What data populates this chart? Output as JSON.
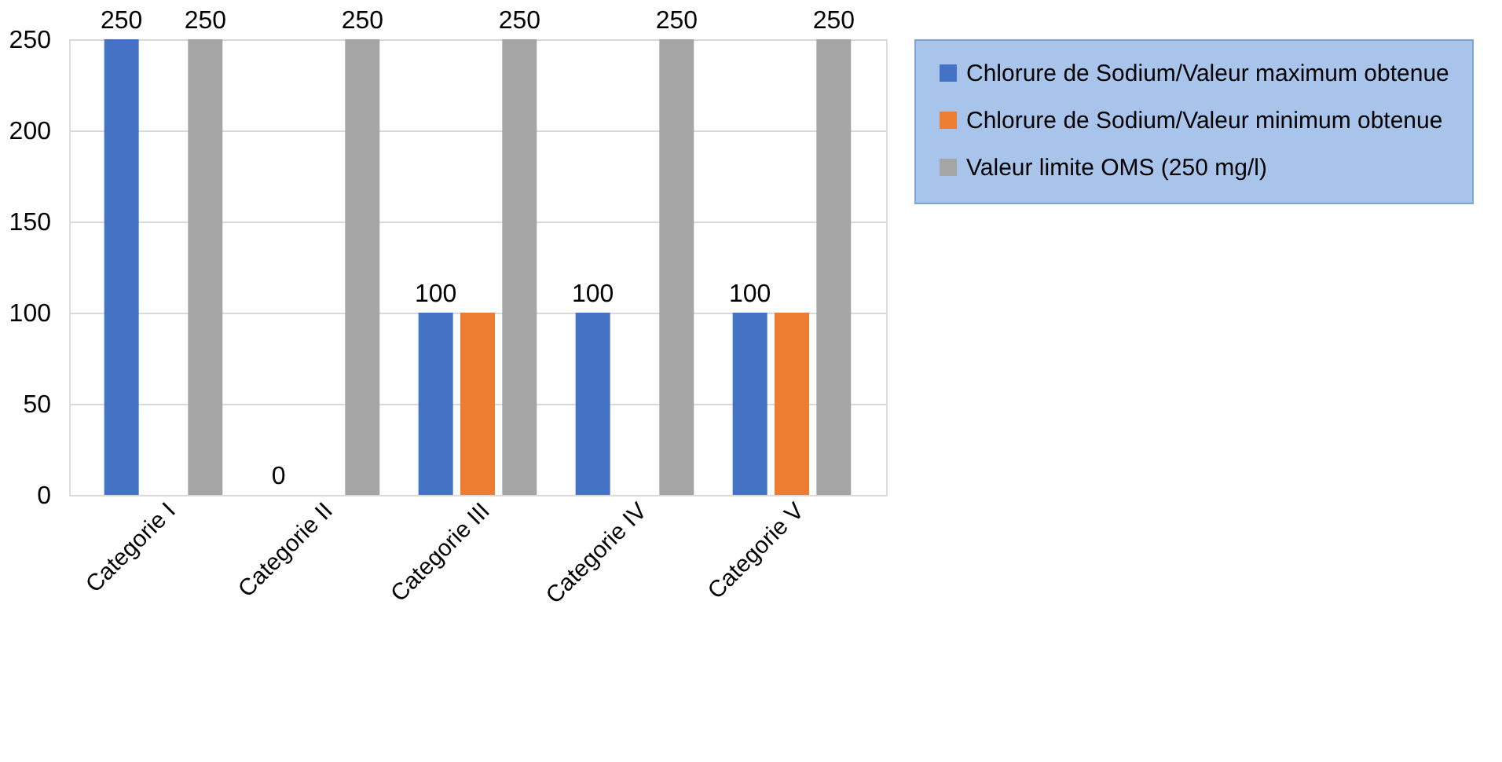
{
  "chart_data": {
    "type": "bar",
    "categories": [
      "Categorie I",
      "Categorie II",
      "Categorie III",
      "Categorie IV",
      "Categorie V"
    ],
    "series": [
      {
        "name": "Chlorure de Sodium/Valeur maximum obtenue",
        "color": "#4472c4",
        "values": [
          250,
          0,
          100,
          100,
          100
        ],
        "value_labels": [
          "250",
          "0",
          "100",
          "100",
          "100"
        ]
      },
      {
        "name": " Chlorure de Sodium/Valeur minimum obtenue",
        "color": "#ed7d31",
        "values": [
          0,
          0,
          100,
          0,
          100
        ],
        "value_labels": [
          null,
          null,
          null,
          null,
          null
        ]
      },
      {
        "name": "Valeur limite OMS (250 mg/l)",
        "color": "#a5a5a5",
        "values": [
          250,
          250,
          250,
          250,
          250
        ],
        "value_labels": [
          "250",
          "250",
          "250",
          "250",
          "250"
        ]
      }
    ],
    "ylim": [
      0,
      250
    ],
    "yticks": [
      0,
      50,
      100,
      150,
      200,
      250
    ],
    "grid": "y",
    "legend": "right"
  }
}
